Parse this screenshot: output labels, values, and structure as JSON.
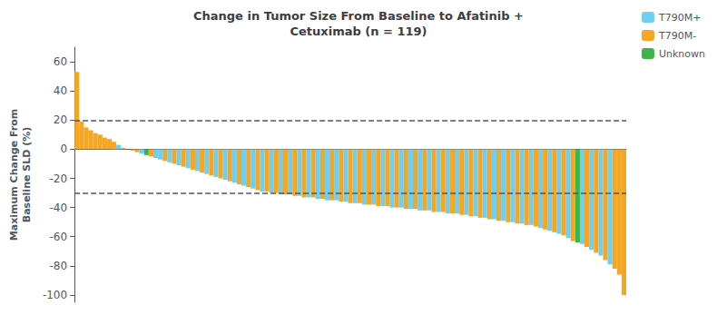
{
  "chart_data": {
    "type": "bar",
    "title": "Change in Tumor Size From Baseline to Afatinib +\nCetuximab (n = 119)",
    "ylabel": "Maximum Change From\nBaseline SLD (%)",
    "categories": [
      null,
      null,
      null,
      null,
      null,
      null,
      null,
      null,
      null,
      null,
      null,
      null,
      null,
      null,
      null,
      null,
      null,
      null,
      null,
      null,
      null,
      null,
      null,
      null,
      null,
      null,
      null,
      null,
      null,
      null,
      null,
      null,
      null,
      null,
      null,
      null,
      null,
      null,
      null,
      null,
      null,
      null,
      null,
      null,
      null,
      null,
      null,
      null,
      null,
      null,
      null,
      null,
      null,
      null,
      null,
      null,
      null,
      null,
      null,
      null,
      null,
      null,
      null,
      null,
      null,
      null,
      null,
      null,
      null,
      null,
      null,
      null,
      null,
      null,
      null,
      null,
      null,
      null,
      null,
      null,
      null,
      null,
      null,
      null,
      null,
      null,
      null,
      null,
      null,
      null,
      null,
      null,
      null,
      null,
      null,
      null,
      null,
      null,
      null,
      null,
      null,
      null,
      null,
      null,
      null,
      null,
      null,
      null,
      null,
      null,
      null,
      null,
      null,
      null,
      null,
      null,
      null,
      null,
      null
    ],
    "series": [
      {
        "name": "T790M+",
        "color": "#6ecff6",
        "values": [
          null,
          null,
          null,
          null,
          null,
          null,
          null,
          null,
          null,
          3,
          null,
          null,
          null,
          null,
          -3,
          null,
          null,
          -6,
          -7,
          null,
          -9,
          null,
          -11,
          null,
          -13,
          null,
          -15,
          null,
          -17,
          null,
          -19,
          null,
          -21,
          null,
          -23,
          null,
          -25,
          null,
          -27,
          null,
          -29,
          null,
          -30,
          null,
          -31,
          null,
          -31,
          null,
          -32,
          null,
          -33,
          null,
          -34,
          null,
          -35,
          null,
          -35,
          null,
          -36,
          null,
          -37,
          null,
          -38,
          null,
          -38,
          null,
          -39,
          null,
          -40,
          null,
          -40,
          null,
          -41,
          null,
          -42,
          null,
          -42,
          null,
          -43,
          null,
          -44,
          null,
          -44,
          null,
          -45,
          null,
          -46,
          null,
          -47,
          null,
          -48,
          null,
          -49,
          null,
          -50,
          null,
          -51,
          null,
          -52,
          null,
          -54,
          null,
          -56,
          null,
          -58,
          null,
          -61,
          null,
          null,
          -65,
          null,
          -69,
          null,
          -73,
          null,
          -79,
          null,
          null,
          null
        ]
      },
      {
        "name": "T790M-",
        "color": "#f5a623",
        "values": [
          53,
          19,
          15,
          13,
          11,
          10,
          8,
          7,
          5,
          null,
          1,
          0,
          -1,
          -2,
          null,
          null,
          -5,
          null,
          null,
          -8,
          null,
          -10,
          null,
          -12,
          null,
          -14,
          null,
          -16,
          null,
          -18,
          null,
          -20,
          null,
          -22,
          null,
          -24,
          null,
          -26,
          null,
          -28,
          null,
          -29,
          null,
          -30,
          null,
          -31,
          null,
          -32,
          null,
          -33,
          null,
          -33,
          null,
          -34,
          null,
          -35,
          null,
          -36,
          null,
          -37,
          null,
          -37,
          null,
          -38,
          null,
          -39,
          null,
          -39,
          null,
          -40,
          null,
          -41,
          null,
          -41,
          null,
          -42,
          null,
          -43,
          null,
          -43,
          null,
          -44,
          null,
          -45,
          null,
          -46,
          null,
          -47,
          null,
          -48,
          null,
          -49,
          null,
          -50,
          null,
          -51,
          null,
          -52,
          null,
          -53,
          null,
          -55,
          null,
          -57,
          null,
          -59,
          null,
          -63,
          null,
          null,
          -67,
          null,
          -71,
          null,
          -76,
          null,
          -82,
          -86,
          -100
        ]
      },
      {
        "name": "Unknown",
        "color": "#3db54a",
        "values": [
          null,
          null,
          null,
          null,
          null,
          null,
          null,
          null,
          null,
          null,
          null,
          null,
          null,
          null,
          null,
          -4,
          null,
          null,
          null,
          null,
          null,
          null,
          null,
          null,
          null,
          null,
          null,
          null,
          null,
          null,
          null,
          null,
          null,
          null,
          null,
          null,
          null,
          null,
          null,
          null,
          null,
          null,
          null,
          null,
          null,
          null,
          null,
          null,
          null,
          null,
          null,
          null,
          null,
          null,
          null,
          null,
          null,
          null,
          null,
          null,
          null,
          null,
          null,
          null,
          null,
          null,
          null,
          null,
          null,
          null,
          null,
          null,
          null,
          null,
          null,
          null,
          null,
          null,
          null,
          null,
          null,
          null,
          null,
          null,
          null,
          null,
          null,
          null,
          null,
          null,
          null,
          null,
          null,
          null,
          null,
          null,
          null,
          null,
          null,
          null,
          null,
          null,
          null,
          null,
          null,
          null,
          null,
          null,
          -64,
          null,
          null,
          null,
          null,
          null,
          null,
          null,
          null,
          null,
          null
        ]
      }
    ],
    "hlines": [
      20,
      -30
    ],
    "ylim": [
      -105,
      70
    ],
    "yticks": [
      -100,
      -80,
      -60,
      -40,
      -20,
      0,
      20,
      40,
      60
    ],
    "grid": false,
    "legend": "upper right",
    "tick_labels": "y"
  }
}
